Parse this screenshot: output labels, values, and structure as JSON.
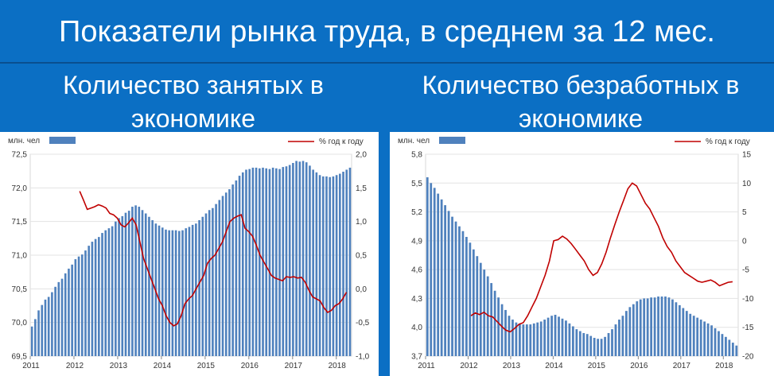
{
  "header": {
    "title": "Показатели рынка труда, в среднем за 12 мес."
  },
  "charts_meta": {
    "left_subtitle": "Количество занятых в экономике",
    "right_subtitle": "Количество безработных в экономике"
  },
  "chart_data": [
    {
      "type": "bar",
      "unit_label": "млн. чел",
      "legend_line": "% год к году",
      "bar_color": "#4f81bd",
      "line_color": "#c00000",
      "x_ticks": [
        "2011",
        "2012",
        "2013",
        "2014",
        "2015",
        "2016",
        "2017",
        "2018"
      ],
      "ylim": [
        69.5,
        72.5
      ],
      "y_ticks": [
        "69,5",
        "70,0",
        "70,5",
        "71,0",
        "71,5",
        "72,0",
        "72,5"
      ],
      "y2lim": [
        -1.0,
        2.0
      ],
      "y2_ticks": [
        "-1,0",
        "-0,5",
        "0,0",
        "0,5",
        "1,0",
        "1,5",
        "2,0"
      ],
      "bars": [
        69.94,
        70.05,
        70.18,
        70.26,
        70.34,
        70.38,
        70.45,
        70.53,
        70.6,
        70.65,
        70.73,
        70.8,
        70.86,
        70.94,
        70.98,
        71.01,
        71.07,
        71.14,
        71.2,
        71.24,
        71.27,
        71.33,
        71.37,
        71.4,
        71.43,
        71.5,
        71.55,
        71.58,
        71.63,
        71.66,
        71.72,
        71.74,
        71.72,
        71.67,
        71.62,
        71.57,
        71.52,
        71.47,
        71.44,
        71.41,
        71.38,
        71.37,
        71.37,
        71.37,
        71.36,
        71.37,
        71.4,
        71.42,
        71.45,
        71.47,
        71.52,
        71.57,
        71.62,
        71.67,
        71.7,
        71.76,
        71.82,
        71.88,
        71.93,
        71.98,
        72.05,
        72.11,
        72.18,
        72.23,
        72.27,
        72.28,
        72.3,
        72.3,
        72.29,
        72.3,
        72.29,
        72.28,
        72.3,
        72.29,
        72.28,
        72.31,
        72.32,
        72.34,
        72.37,
        72.4,
        72.39,
        72.4,
        72.38,
        72.33,
        72.27,
        72.23,
        72.19,
        72.17,
        72.17,
        72.16,
        72.17,
        72.19,
        72.21,
        72.24,
        72.27,
        72.3
      ],
      "line": [
        1.45,
        1.32,
        1.18,
        1.2,
        1.22,
        1.25,
        1.23,
        1.2,
        1.12,
        1.1,
        1.05,
        0.95,
        0.92,
        0.98,
        1.05,
        0.95,
        0.7,
        0.45,
        0.3,
        0.15,
        0.0,
        -0.15,
        -0.25,
        -0.4,
        -0.5,
        -0.55,
        -0.52,
        -0.4,
        -0.22,
        -0.15,
        -0.1,
        0.0,
        0.1,
        0.2,
        0.38,
        0.45,
        0.5,
        0.6,
        0.7,
        0.85,
        1.0,
        1.05,
        1.08,
        1.1,
        0.9,
        0.85,
        0.78,
        0.65,
        0.5,
        0.4,
        0.3,
        0.2,
        0.16,
        0.14,
        0.12,
        0.18,
        0.17,
        0.18,
        0.16,
        0.17,
        0.1,
        -0.02,
        -0.12,
        -0.15,
        -0.18,
        -0.28,
        -0.35,
        -0.32,
        -0.25,
        -0.22,
        -0.15,
        -0.05
      ]
    },
    {
      "type": "bar",
      "unit_label": "млн. чел",
      "legend_line": "% год к году",
      "bar_color": "#4f81bd",
      "line_color": "#c00000",
      "x_ticks": [
        "2011",
        "2012",
        "2013",
        "2014",
        "2015",
        "2016",
        "2017",
        "2018"
      ],
      "ylim": [
        3.7,
        5.8
      ],
      "y_ticks": [
        "3,7",
        "4,0",
        "4,3",
        "4,6",
        "4,9",
        "5,2",
        "5,5",
        "5,8"
      ],
      "y2lim": [
        -20,
        15
      ],
      "y2_ticks": [
        "-20",
        "-15",
        "-10",
        "-5",
        "0",
        "5",
        "10",
        "15"
      ],
      "bars": [
        5.56,
        5.5,
        5.45,
        5.39,
        5.33,
        5.27,
        5.21,
        5.15,
        5.1,
        5.05,
        5.0,
        4.94,
        4.88,
        4.81,
        4.74,
        4.67,
        4.6,
        4.53,
        4.46,
        4.38,
        4.31,
        4.24,
        4.18,
        4.12,
        4.08,
        4.05,
        4.04,
        4.03,
        4.03,
        4.03,
        4.04,
        4.05,
        4.06,
        4.08,
        4.1,
        4.12,
        4.13,
        4.11,
        4.09,
        4.07,
        4.04,
        4.01,
        3.98,
        3.96,
        3.94,
        3.93,
        3.91,
        3.89,
        3.88,
        3.88,
        3.9,
        3.94,
        3.98,
        4.03,
        4.08,
        4.12,
        4.17,
        4.21,
        4.24,
        4.27,
        4.29,
        4.3,
        4.3,
        4.31,
        4.31,
        4.32,
        4.32,
        4.32,
        4.31,
        4.29,
        4.26,
        4.23,
        4.2,
        4.17,
        4.14,
        4.12,
        4.1,
        4.08,
        4.06,
        4.04,
        4.02,
        3.99,
        3.96,
        3.93,
        3.9,
        3.87,
        3.84,
        3.81
      ],
      "line": [
        -13,
        -12.5,
        -12.8,
        -12.4,
        -13,
        -13.2,
        -14,
        -14.8,
        -15.5,
        -15.8,
        -15.2,
        -14.5,
        -14.2,
        -13,
        -11.5,
        -10,
        -8,
        -6,
        -3.5,
        0,
        0.2,
        0.8,
        0.3,
        -0.5,
        -1.5,
        -2.5,
        -3.5,
        -5,
        -6,
        -5.5,
        -4,
        -2,
        0.5,
        2.8,
        5,
        7,
        9,
        10,
        9.5,
        8,
        6.5,
        5.5,
        4,
        2.5,
        0.5,
        -1,
        -2,
        -3.5,
        -4.5,
        -5.5,
        -6,
        -6.5,
        -7,
        -7.2,
        -7,
        -6.8,
        -7.2,
        -7.8,
        -7.5,
        -7.2,
        -7.1
      ]
    }
  ]
}
